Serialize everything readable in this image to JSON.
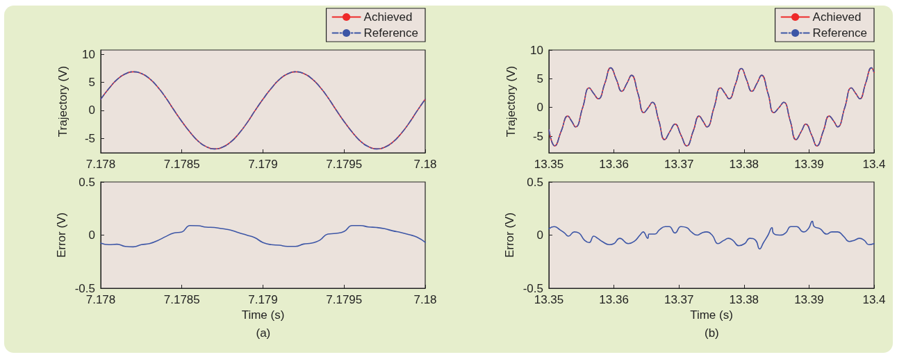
{
  "chart_data": [
    {
      "type": "line",
      "ylabel": "Trajectory (V)",
      "x": [
        7.178,
        7.17805,
        7.1781,
        7.17815,
        7.1782,
        7.17825,
        7.1783,
        7.17835,
        7.1784,
        7.17845,
        7.1785,
        7.17855,
        7.1786,
        7.17865,
        7.1787,
        7.17875,
        7.1788,
        7.17885,
        7.1789,
        7.17895,
        7.179,
        7.17905,
        7.1791,
        7.17915,
        7.1792,
        7.17925,
        7.1793,
        7.17935,
        7.1794,
        7.17945,
        7.1795,
        7.17955,
        7.1796,
        7.17965,
        7.1797,
        7.17975,
        7.1798,
        7.17985,
        7.1799,
        7.17995,
        7.18
      ],
      "series": [
        {
          "name": "Achieved",
          "color": "#ee2a2a",
          "line_style": "solid",
          "values": [
            2.0,
            3.9,
            5.5,
            6.5,
            6.9,
            6.6,
            5.7,
            4.2,
            2.3,
            0.1,
            -2.0,
            -3.9,
            -5.5,
            -6.5,
            -6.9,
            -6.6,
            -5.7,
            -4.2,
            -2.3,
            -0.1,
            2.0,
            3.9,
            5.5,
            6.5,
            6.9,
            6.6,
            5.7,
            4.2,
            2.3,
            0.1,
            -2.0,
            -3.9,
            -5.5,
            -6.5,
            -6.9,
            -6.6,
            -5.7,
            -4.2,
            -2.3,
            -0.1,
            2.0
          ]
        },
        {
          "name": "Reference",
          "color": "#3d56a6",
          "line_style": "dashed",
          "values": [
            2.0,
            3.9,
            5.5,
            6.5,
            6.9,
            6.6,
            5.7,
            4.2,
            2.3,
            0.1,
            -2.0,
            -3.9,
            -5.5,
            -6.5,
            -6.9,
            -6.6,
            -5.7,
            -4.2,
            -2.3,
            -0.1,
            2.0,
            3.9,
            5.5,
            6.5,
            6.9,
            6.6,
            5.7,
            4.2,
            2.3,
            0.1,
            -2.0,
            -3.9,
            -5.5,
            -6.5,
            -6.9,
            -6.6,
            -5.7,
            -4.2,
            -2.3,
            -0.1,
            2.0
          ]
        }
      ],
      "xlim": [
        7.178,
        7.18
      ],
      "xticks": [
        7.178,
        7.1785,
        7.179,
        7.1795,
        7.18
      ],
      "ylim": [
        -7.6,
        10.8
      ],
      "yticks": [
        -5,
        0,
        5,
        10
      ],
      "grid": false,
      "legend": "top right",
      "marker": "none"
    },
    {
      "type": "line",
      "ylabel": "Trajectory (V)",
      "x": [
        13.35,
        13.3509,
        13.3519,
        13.3529,
        13.3535,
        13.3541,
        13.3552,
        13.3562,
        13.3569,
        13.3576,
        13.3586,
        13.3595,
        13.3604,
        13.3612,
        13.362,
        13.3627,
        13.3637,
        13.3646,
        13.3653,
        13.3659,
        13.3669,
        13.3678,
        13.3686,
        13.3694,
        13.3703,
        13.3712,
        13.3722,
        13.3731,
        13.3737,
        13.3743,
        13.3754,
        13.3764,
        13.3771,
        13.3777,
        13.3787,
        13.3796,
        13.3804,
        13.3812,
        13.382,
        13.3827,
        13.3837,
        13.3846,
        13.3854,
        13.3861,
        13.3871,
        13.388,
        13.3888,
        13.3895,
        13.3904,
        13.3912,
        13.3922,
        13.3931,
        13.3938,
        13.3944,
        13.3955,
        13.3965,
        13.3972,
        13.3978,
        13.3987,
        13.3996,
        13.4
      ],
      "series": [
        {
          "name": "Achieved",
          "color": "#ee2a2a",
          "line_style": "solid",
          "values": [
            -3.9,
            -6.7,
            -4.1,
            -1.5,
            -2.4,
            -3.4,
            0,
            3.4,
            2.4,
            1.5,
            4.2,
            6.9,
            4.8,
            2.8,
            4.2,
            5.6,
            2.4,
            -0.9,
            0,
            0.9,
            -2.3,
            -5.6,
            -4.2,
            -2.9,
            -4.8,
            -6.7,
            -4.1,
            -1.5,
            -2.4,
            -3.4,
            0,
            3.4,
            2.4,
            1.5,
            4.1,
            6.8,
            4.8,
            2.8,
            4.2,
            5.6,
            2.4,
            -0.9,
            0,
            0.9,
            -2.3,
            -5.6,
            -4.2,
            -2.9,
            -4.8,
            -6.7,
            -4.1,
            -1.5,
            -2.4,
            -3.4,
            0,
            3.4,
            2.4,
            1.5,
            4.2,
            6.9,
            6.1
          ]
        },
        {
          "name": "Reference",
          "color": "#3d56a6",
          "line_style": "dashed",
          "values": [
            -3.9,
            -6.7,
            -4.1,
            -1.5,
            -2.4,
            -3.4,
            0,
            3.4,
            2.4,
            1.5,
            4.2,
            6.9,
            4.8,
            2.8,
            4.2,
            5.6,
            2.4,
            -0.9,
            0,
            0.9,
            -2.3,
            -5.6,
            -4.2,
            -2.9,
            -4.8,
            -6.7,
            -4.1,
            -1.5,
            -2.4,
            -3.4,
            0,
            3.4,
            2.4,
            1.5,
            4.1,
            6.8,
            4.8,
            2.8,
            4.2,
            5.6,
            2.4,
            -0.9,
            0,
            0.9,
            -2.3,
            -5.6,
            -4.2,
            -2.9,
            -4.8,
            -6.7,
            -4.1,
            -1.5,
            -2.4,
            -3.4,
            0,
            3.4,
            2.4,
            1.5,
            4.2,
            6.9,
            6.1
          ]
        }
      ],
      "xlim": [
        13.35,
        13.4
      ],
      "xticks": [
        13.35,
        13.36,
        13.37,
        13.38,
        13.39,
        13.4
      ],
      "ylim": [
        -7.9,
        10
      ],
      "yticks": [
        -5,
        0,
        5,
        10
      ],
      "grid": false,
      "legend": "top right",
      "marker": "none"
    },
    {
      "type": "line",
      "xlabel": "Time (s)",
      "ylabel": "Error (V)",
      "annotations": [
        "(a)"
      ],
      "x": [
        7.178,
        7.17805,
        7.1781,
        7.17815,
        7.1782,
        7.17825,
        7.1783,
        7.17835,
        7.1784,
        7.17845,
        7.1785,
        7.17855,
        7.1786,
        7.17865,
        7.1787,
        7.17875,
        7.1788,
        7.17885,
        7.1789,
        7.17895,
        7.179,
        7.17905,
        7.1791,
        7.17915,
        7.1792,
        7.17925,
        7.1793,
        7.17935,
        7.1794,
        7.17945,
        7.1795,
        7.17955,
        7.1796,
        7.17965,
        7.1797,
        7.17975,
        7.1798,
        7.17985,
        7.1799,
        7.17995,
        7.18
      ],
      "series": [
        {
          "color": "#3d56a6",
          "line_style": "solid",
          "values": [
            -0.075,
            -0.09,
            -0.086,
            -0.106,
            -0.11,
            -0.09,
            -0.08,
            -0.052,
            -0.014,
            0.02,
            0.03,
            0.09,
            0.088,
            0.075,
            0.072,
            0.06,
            0.048,
            0.023,
            0,
            -0.025,
            -0.07,
            -0.09,
            -0.095,
            -0.106,
            -0.106,
            -0.084,
            -0.075,
            -0.048,
            0.01,
            0.016,
            0.034,
            0.09,
            0.09,
            0.077,
            0.072,
            0.06,
            0.04,
            0.025,
            0.005,
            -0.02,
            -0.068
          ]
        }
      ],
      "xlim": [
        7.178,
        7.18
      ],
      "xticks": [
        7.178,
        7.1785,
        7.179,
        7.1795,
        7.18
      ],
      "ylim": [
        -0.5,
        0.5
      ],
      "yticks": [
        -0.5,
        0,
        0.5
      ],
      "grid": false,
      "marker": "none"
    },
    {
      "type": "line",
      "xlabel": "Time (s)",
      "ylabel": "Error (V)",
      "annotations": [
        "(b)"
      ],
      "x": [
        13.35,
        13.3508,
        13.3517,
        13.3524,
        13.353,
        13.3539,
        13.3546,
        13.3555,
        13.3562,
        13.3569,
        13.3575,
        13.3582,
        13.3593,
        13.36,
        13.3609,
        13.3622,
        13.3631,
        13.364,
        13.3645,
        13.3652,
        13.3654,
        13.3663,
        13.367,
        13.3679,
        13.3685,
        13.3694,
        13.3703,
        13.3712,
        13.3719,
        13.3728,
        13.3735,
        13.3742,
        13.3751,
        13.376,
        13.3769,
        13.3776,
        13.3783,
        13.3792,
        13.3801,
        13.3809,
        13.3818,
        13.3824,
        13.383,
        13.3837,
        13.3843,
        13.3845,
        13.3855,
        13.3864,
        13.3872,
        13.3881,
        13.3891,
        13.3899,
        13.3905,
        13.3908,
        13.3917,
        13.3927,
        13.3935,
        13.3944,
        13.3953,
        13.3962,
        13.3969,
        13.3978,
        13.3985,
        13.3992,
        13.4
      ],
      "series": [
        {
          "color": "#3d56a6",
          "line_style": "solid",
          "values": [
            0.06,
            0.08,
            0.05,
            0.02,
            -0.01,
            0.03,
            0.02,
            -0.05,
            -0.07,
            -0.01,
            -0.03,
            -0.06,
            -0.09,
            -0.08,
            -0.03,
            -0.08,
            -0.06,
            0,
            0.03,
            -0.03,
            0.01,
            0.01,
            0.05,
            0.08,
            0.08,
            0.02,
            0.08,
            0.07,
            0.03,
            0,
            0.02,
            0.03,
            0,
            -0.08,
            -0.05,
            -0.03,
            -0.05,
            -0.1,
            -0.08,
            -0.03,
            -0.05,
            -0.13,
            -0.07,
            0,
            0.07,
            0.02,
            0,
            0.02,
            0.08,
            0.08,
            0.03,
            0.06,
            0.13,
            0.08,
            0.06,
            0.01,
            0.03,
            0.03,
            -0.01,
            -0.06,
            -0.05,
            -0.03,
            -0.05,
            -0.09,
            -0.08
          ]
        }
      ],
      "xlim": [
        13.35,
        13.4
      ],
      "xticks": [
        13.35,
        13.36,
        13.37,
        13.38,
        13.39,
        13.4
      ],
      "ylim": [
        -0.5,
        0.5
      ],
      "yticks": [
        -0.5,
        0,
        0.5
      ],
      "grid": false,
      "marker": "none"
    }
  ]
}
